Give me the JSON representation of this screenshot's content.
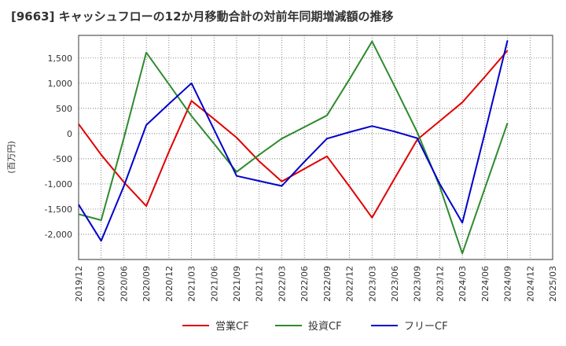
{
  "chart_data": {
    "type": "line",
    "title": "[9663]  キャッシュフローの12か月移動合計の対前年同期増減額の推移",
    "ylabel": "(百万円)",
    "xlabel": "",
    "ylim": [
      -2500,
      1950
    ],
    "yticks": [
      1500,
      1000,
      500,
      0,
      -500,
      -1000,
      -1500,
      -2000
    ],
    "ytick_labels": [
      "1,500",
      "1,000",
      "500",
      "0",
      "-500",
      "-1,000",
      "-1,500",
      "-2,000"
    ],
    "grid": true,
    "legend_position": "bottom",
    "categories": [
      "2019/12",
      "2020/03",
      "2020/06",
      "2020/09",
      "2020/12",
      "2021/03",
      "2021/06",
      "2021/09",
      "2021/12",
      "2022/03",
      "2022/06",
      "2022/09",
      "2022/12",
      "2023/03",
      "2023/06",
      "2023/09",
      "2023/12",
      "2024/03",
      "2024/06",
      "2024/09",
      "2024/12",
      "2025/03"
    ],
    "series": [
      {
        "name": "営業CF",
        "color": "#e00000",
        "values": [
          190,
          -420,
          -960,
          -1440,
          -360,
          650,
          290,
          -80,
          -550,
          -950,
          -700,
          -450,
          -1050,
          -1670,
          -890,
          -120,
          250,
          620,
          1130,
          1650,
          null,
          null
        ]
      },
      {
        "name": "投資CF",
        "color": "#2e8b2e",
        "values": [
          -1600,
          -1720,
          -100,
          1610,
          980,
          350,
          -200,
          -760,
          -420,
          -100,
          130,
          360,
          1080,
          1830,
          940,
          30,
          -1050,
          -2380,
          -1080,
          210,
          null,
          null
        ]
      },
      {
        "name": "フリーCF",
        "color": "#0000cc",
        "values": [
          -1410,
          -2130,
          -1050,
          170,
          590,
          1000,
          80,
          -840,
          -940,
          -1040,
          -560,
          -100,
          30,
          150,
          40,
          -90,
          -1000,
          -1770,
          20,
          1850,
          null,
          null
        ]
      }
    ]
  }
}
